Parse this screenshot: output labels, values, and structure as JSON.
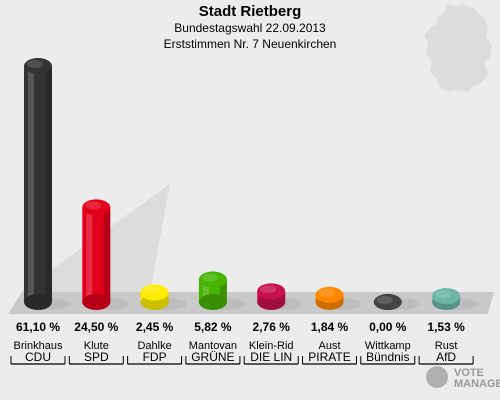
{
  "header": {
    "title": "Stadt Rietberg",
    "subtitle": "Bundestagswahl 22.09.2013",
    "subtitle2": "Erststimmen Nr. 7 Neuenkirchen"
  },
  "logo": {
    "line1": "VOTE",
    "line2": "MANAGER"
  },
  "chart_data": {
    "type": "bar",
    "categories": [
      "Brinkhaus",
      "Klute",
      "Dahlke",
      "Mantovan",
      "Klein-Rid",
      "Aust",
      "Wittkamp",
      "Rust"
    ],
    "parties": [
      "CDU",
      "SPD",
      "FDP",
      "GRÜNE",
      "DIE LIN",
      "PIRATE",
      "Bündnis",
      "AfD"
    ],
    "values": [
      61.1,
      24.5,
      2.45,
      5.82,
      2.76,
      1.84,
      0.0,
      1.53
    ],
    "value_labels": [
      "61,10 %",
      "24,50 %",
      "2,45 %",
      "5,82 %",
      "2,76 %",
      "1,84 %",
      "0,00 %",
      "1,53 %"
    ],
    "colors": [
      "#333333",
      "#e3001b",
      "#ffed00",
      "#46b400",
      "#c8104e",
      "#ff8800",
      "#444444",
      "#6cb7a4"
    ],
    "ylim": [
      0,
      61.1
    ],
    "grid": false
  }
}
